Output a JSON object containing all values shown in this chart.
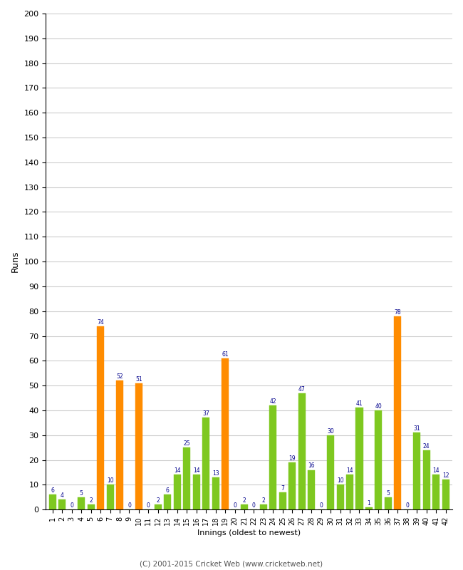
{
  "innings": [
    1,
    2,
    3,
    4,
    5,
    6,
    7,
    8,
    9,
    10,
    11,
    12,
    13,
    14,
    15,
    16,
    17,
    18,
    19,
    20,
    21,
    22,
    23,
    24,
    25,
    26,
    27,
    28,
    29,
    30,
    31,
    32,
    33,
    34,
    35,
    36,
    37,
    38,
    39,
    40,
    41,
    42
  ],
  "values": [
    6,
    4,
    0,
    5,
    2,
    74,
    10,
    52,
    0,
    51,
    0,
    2,
    6,
    14,
    25,
    14,
    37,
    13,
    61,
    0,
    2,
    0,
    2,
    42,
    7,
    19,
    47,
    16,
    0,
    30,
    10,
    14,
    41,
    1,
    40,
    5,
    78,
    0,
    31,
    24,
    14,
    12
  ],
  "colors": [
    "#7ec820",
    "#7ec820",
    "#7ec820",
    "#7ec820",
    "#7ec820",
    "#ff8c00",
    "#7ec820",
    "#ff8c00",
    "#7ec820",
    "#ff8c00",
    "#7ec820",
    "#7ec820",
    "#7ec820",
    "#7ec820",
    "#7ec820",
    "#7ec820",
    "#7ec820",
    "#7ec820",
    "#ff8c00",
    "#7ec820",
    "#7ec820",
    "#7ec820",
    "#7ec820",
    "#7ec820",
    "#7ec820",
    "#7ec820",
    "#7ec820",
    "#7ec820",
    "#7ec820",
    "#7ec820",
    "#7ec820",
    "#7ec820",
    "#7ec820",
    "#7ec820",
    "#7ec820",
    "#7ec820",
    "#ff8c00",
    "#7ec820",
    "#7ec820",
    "#7ec820",
    "#7ec820",
    "#7ec820"
  ],
  "ylim": [
    0,
    200
  ],
  "yticks": [
    0,
    10,
    20,
    30,
    40,
    50,
    60,
    70,
    80,
    90,
    100,
    110,
    120,
    130,
    140,
    150,
    160,
    170,
    180,
    190,
    200
  ],
  "ylabel": "Runs",
  "xlabel": "Innings (oldest to newest)",
  "footer": "(C) 2001-2015 Cricket Web (www.cricketweb.net)",
  "label_color": "#00008b",
  "bar_width": 0.75,
  "bg_color": "#ffffff",
  "grid_color": "#cccccc"
}
